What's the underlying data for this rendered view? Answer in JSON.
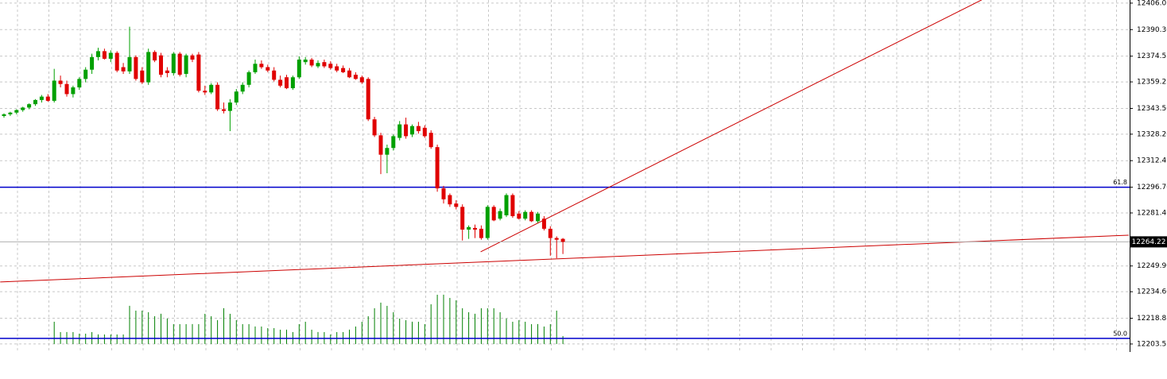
{
  "chart_data": {
    "type": "candlestick",
    "ylim": [
      12198.8,
      12407.9
    ],
    "yticks": [
      12406.05,
      {
        "value": 12390.3,
        "label": "12390.30"
      },
      12374.55,
      12359.25,
      {
        "value": 12343.5,
        "label": "12343.50"
      },
      {
        "value": 12328.2,
        "label": "12328.20"
      },
      12312.45,
      {
        "value": 12296.7,
        "label": "12296.70"
      },
      {
        "value": 12281.4,
        "label": "12281.40"
      },
      {
        "value": 12249.9,
        "label": "12249.90"
      },
      {
        "value": 12234.6,
        "label": "12234.60"
      },
      12218.85,
      12203.55
    ],
    "grid": true,
    "up_color": "#00a000",
    "down_color": "#e00000",
    "open": [
      12339.0,
      12340.0,
      12341.0,
      12342.5,
      12344.0,
      12346.0,
      12348.5,
      12350.5,
      12348.0,
      12360.0,
      12358.0,
      12352.0,
      12356.0,
      12361.0,
      12366.5,
      12374.0,
      12377.5,
      12373.0,
      12376.5,
      12368.0,
      12365.5,
      12374.0,
      12366.0,
      12359.0,
      12377.0,
      12375.0,
      12366.0,
      12364.5,
      12376.0,
      12364.0,
      12375.0,
      12375.5,
      12354.0,
      12353.0,
      12357.5,
      12343.0,
      12342.0,
      12347.0,
      12353.5,
      12357.5,
      12365.0,
      12370.0,
      12368.0,
      12366.0,
      12360.5,
      12362.0,
      12355.5,
      12362.0,
      12371.0,
      12372.5,
      12368.5,
      12371.0,
      12370.0,
      12368.5,
      12367.5,
      12366.0,
      12363.5,
      12362.0,
      12361.0,
      12337.0,
      12327.5,
      12316.0,
      12320.0,
      12326.0,
      12334.0,
      12328.0,
      12333.0,
      12332.0,
      12329.0,
      12320.5,
      12296.0,
      12292.0,
      12287.0,
      12285.0,
      12271.5,
      12272.5,
      12272.0,
      12266.5,
      12285.0,
      12278.0,
      12280.0,
      12292.0,
      12281.0,
      12278.0,
      12282.0,
      12276.5,
      12278.0,
      12272.0,
      12266.5,
      12266.0
    ],
    "high": [
      12340.5,
      12341.5,
      12343.0,
      12344.5,
      12346.5,
      12349.0,
      12351.5,
      12352.0,
      12367.0,
      12363.0,
      12360.0,
      12357.0,
      12362.0,
      12368.0,
      12376.0,
      12379.5,
      12379.0,
      12378.0,
      12377.5,
      12370.5,
      12392.0,
      12375.0,
      12368.0,
      12379.0,
      12378.0,
      12376.5,
      12368.0,
      12377.0,
      12377.0,
      12376.0,
      12376.0,
      12377.0,
      12357.0,
      12358.5,
      12359.0,
      12347.0,
      12349.0,
      12355.0,
      12359.0,
      12366.0,
      12372.5,
      12372.0,
      12369.5,
      12368.0,
      12363.0,
      12363.5,
      12363.0,
      12374.5,
      12374.0,
      12373.5,
      12372.0,
      12372.5,
      12371.5,
      12370.0,
      12369.0,
      12367.5,
      12365.0,
      12363.0,
      12362.0,
      12338.5,
      12329.0,
      12322.0,
      12328.0,
      12336.0,
      12338.0,
      12334.0,
      12335.5,
      12333.5,
      12330.5,
      12322.0,
      12297.5,
      12293.0,
      12289.0,
      12286.5,
      12274.0,
      12274.5,
      12274.0,
      12286.0,
      12286.0,
      12284.0,
      12293.0,
      12293.0,
      12282.5,
      12283.0,
      12283.0,
      12282.0,
      12279.5,
      12273.5,
      12267.5,
      12266.5
    ],
    "low": [
      12338.0,
      12339.0,
      12340.0,
      12341.5,
      12343.0,
      12345.0,
      12347.0,
      12347.5,
      12347.0,
      12356.0,
      12350.5,
      12350.0,
      12354.5,
      12359.0,
      12364.0,
      12372.0,
      12372.5,
      12371.0,
      12365.0,
      12364.0,
      12364.0,
      12360.0,
      12358.0,
      12357.5,
      12371.0,
      12362.0,
      12362.0,
      12363.0,
      12362.5,
      12362.0,
      12371.0,
      12353.0,
      12351.5,
      12352.0,
      12342.0,
      12340.5,
      12330.0,
      12345.5,
      12352.0,
      12356.0,
      12364.0,
      12367.0,
      12365.0,
      12359.5,
      12356.0,
      12355.0,
      12354.5,
      12361.0,
      12369.5,
      12368.0,
      12367.5,
      12367.5,
      12366.5,
      12365.0,
      12364.5,
      12361.5,
      12360.5,
      12358.0,
      12336.0,
      12326.5,
      12304.5,
      12305.0,
      12318.5,
      12324.5,
      12325.5,
      12326.5,
      12328.5,
      12326.0,
      12319.5,
      12294.0,
      12287.0,
      12285.0,
      12283.5,
      12265.0,
      12266.0,
      12266.5,
      12265.5,
      12265.5,
      12276.5,
      12277.0,
      12279.0,
      12278.5,
      12277.5,
      12277.0,
      12276.0,
      12275.5,
      12271.0,
      12256.0,
      12254.5,
      12257.0
    ],
    "close": [
      12340.0,
      12341.0,
      12342.5,
      12344.0,
      12346.0,
      12348.5,
      12350.5,
      12348.0,
      12360.0,
      12358.0,
      12352.0,
      12356.0,
      12361.0,
      12366.5,
      12374.0,
      12377.5,
      12373.0,
      12376.5,
      12366.0,
      12365.5,
      12374.0,
      12361.0,
      12359.0,
      12377.0,
      12372.0,
      12363.5,
      12364.5,
      12376.0,
      12363.5,
      12375.0,
      12372.5,
      12354.0,
      12353.0,
      12357.5,
      12343.0,
      12342.0,
      12347.0,
      12353.5,
      12357.5,
      12365.0,
      12370.0,
      12368.0,
      12366.0,
      12360.5,
      12357.0,
      12355.5,
      12362.0,
      12372.5,
      12372.5,
      12369.0,
      12370.5,
      12368.5,
      12367.5,
      12366.0,
      12365.0,
      12362.0,
      12361.0,
      12359.0,
      12337.0,
      12327.5,
      12316.0,
      12320.0,
      12327.0,
      12334.0,
      12327.0,
      12333.0,
      12330.0,
      12327.0,
      12320.5,
      12296.0,
      12289.5,
      12286.5,
      12285.0,
      12271.5,
      12273.0,
      12271.5,
      12266.5,
      12285.0,
      12277.0,
      12282.5,
      12292.0,
      12279.5,
      12278.0,
      12282.0,
      12276.5,
      12281.0,
      12272.0,
      12266.5,
      12265.5,
      12264.22
    ],
    "volume_color": "#008000",
    "volume_lim": [
      0,
      100
    ],
    "volume": [
      null,
      null,
      null,
      null,
      null,
      null,
      null,
      null,
      28,
      15,
      15,
      15,
      13,
      13,
      15,
      12,
      12,
      12,
      12,
      12,
      48,
      42,
      42,
      40,
      35,
      38,
      32,
      25,
      25,
      25,
      25,
      25,
      38,
      35,
      30,
      45,
      38,
      30,
      25,
      25,
      22,
      22,
      20,
      20,
      18,
      18,
      15,
      25,
      28,
      18,
      15,
      15,
      12,
      15,
      15,
      18,
      22,
      28,
      35,
      45,
      52,
      48,
      40,
      32,
      30,
      28,
      28,
      25,
      50,
      62,
      62,
      58,
      55,
      45,
      40,
      38,
      45,
      45,
      45,
      40,
      32,
      28,
      30,
      28,
      25,
      25,
      22,
      25,
      42,
      10
    ],
    "levels": [
      {
        "value": 12296.7,
        "label": "61.8"
      },
      {
        "value": 12206.9,
        "label": "50.0"
      }
    ],
    "level_color": "#0000cc",
    "trendlines": [
      {
        "x": [
          -0.6,
          179.1
        ],
        "values": [
          12240.4,
          12268.2
        ]
      },
      {
        "x": [
          75.9,
          155.7
        ],
        "values": [
          12258.3,
          12408.0
        ]
      }
    ],
    "trend_color": "#cc0000",
    "current_price": 12264.22
  }
}
